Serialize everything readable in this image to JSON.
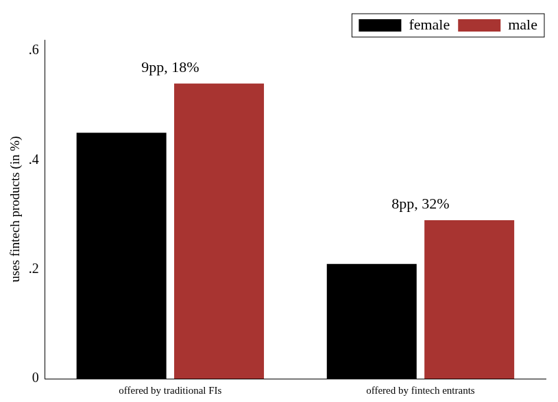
{
  "chart_data": {
    "type": "bar",
    "y_label": "uses fintech products (in %)",
    "categories": [
      "offered by traditional FIs",
      "offered by fintech entrants"
    ],
    "series": [
      {
        "name": "female",
        "color": "#000000",
        "values": [
          0.45,
          0.21
        ]
      },
      {
        "name": "male",
        "color": "#a83431",
        "values": [
          0.54,
          0.29
        ]
      }
    ],
    "annotations": [
      "9pp, 18%",
      "8pp, 32%"
    ],
    "ylim": [
      0,
      0.62
    ],
    "yticks": [
      0,
      {
        "value": 0.2,
        "label": ".2"
      },
      {
        "value": 0.4,
        "label": ".4"
      },
      {
        "value": 0.6,
        "label": ".6"
      }
    ],
    "grid": false,
    "legend": "upper right",
    "data_labels": false
  }
}
